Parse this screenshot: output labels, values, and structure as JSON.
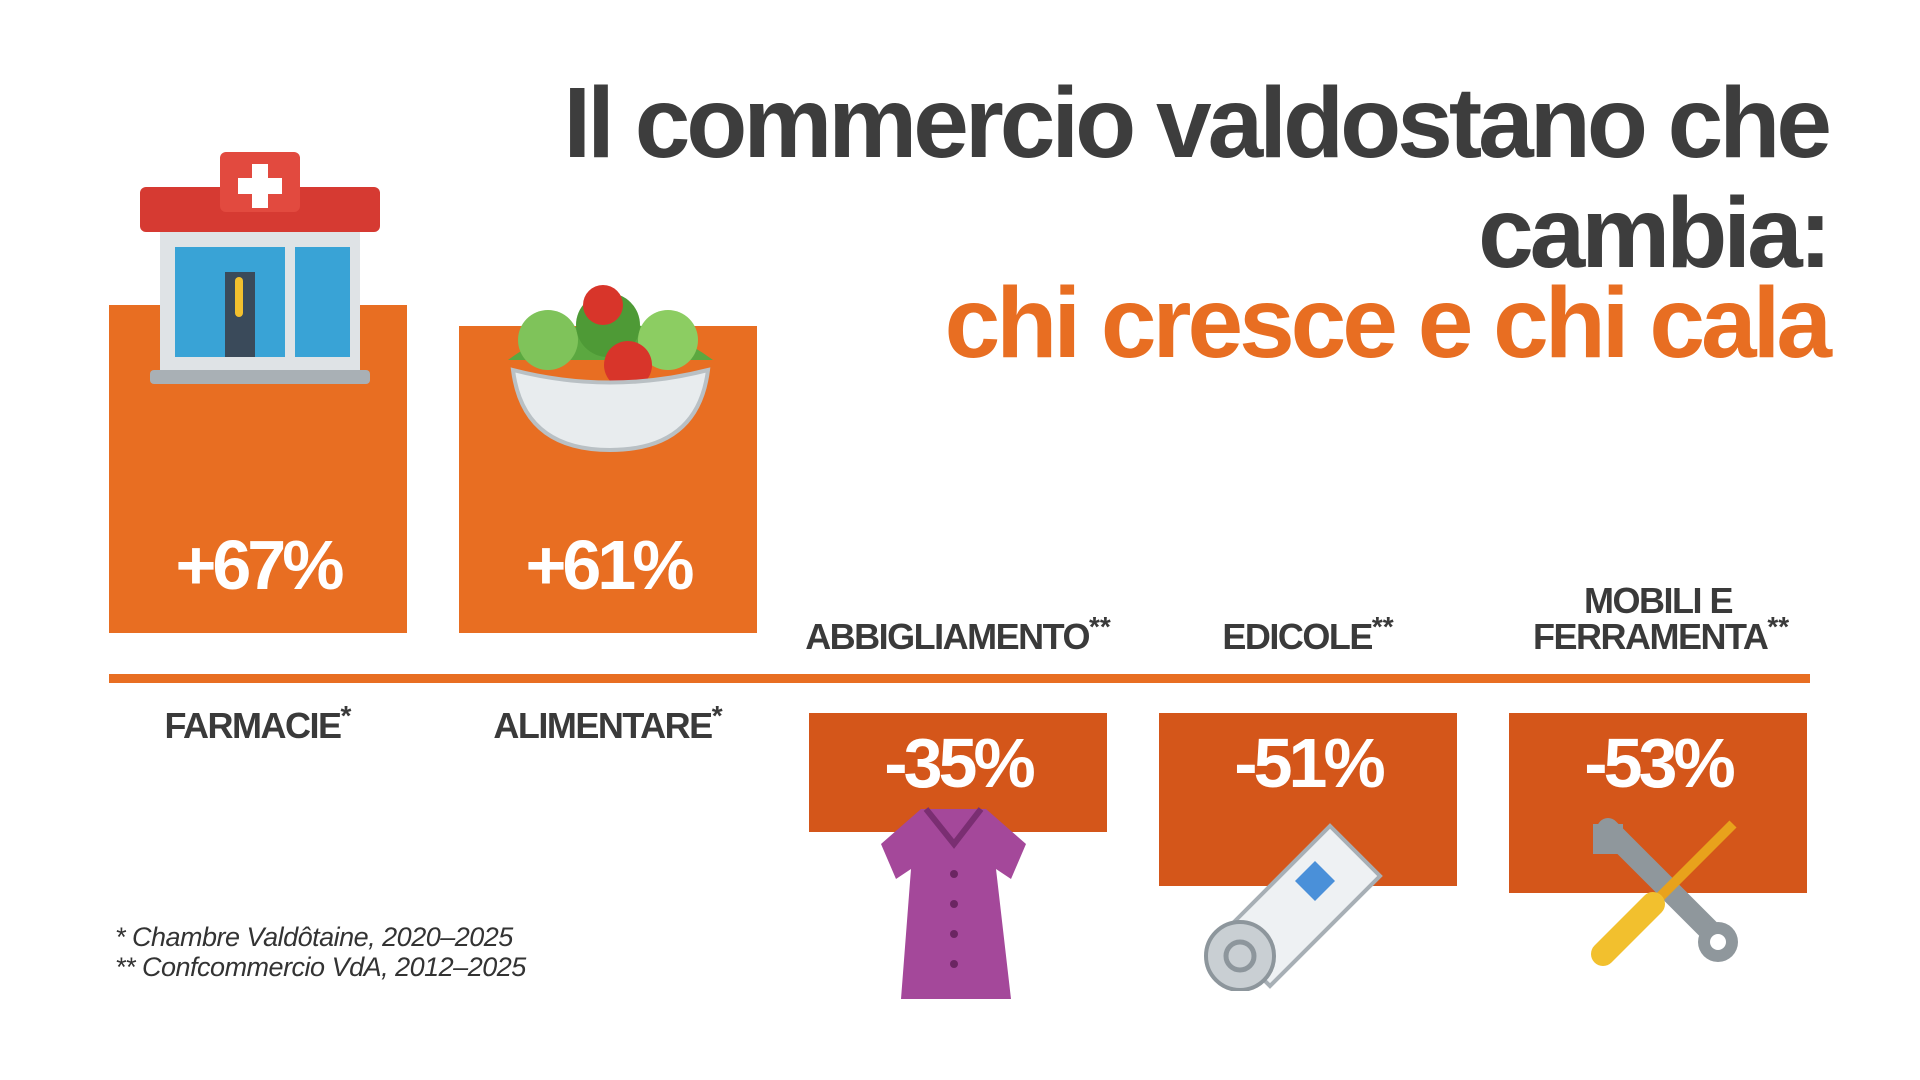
{
  "chart_data": {
    "type": "bar",
    "title": "Il commercio valdostano che cambia:",
    "subtitle": "chi cresce e chi cala",
    "categories": [
      "FARMACIE",
      "ALIMENTARE",
      "ABBIGLIAMENTO",
      "EDICOLE",
      "MOBILI E FERRAMENTA"
    ],
    "markers": [
      "*",
      "*",
      "**",
      "**",
      "**"
    ],
    "values": [
      67,
      61,
      -35,
      -51,
      -53
    ],
    "value_labels": [
      "+67%",
      "+61%",
      "-35%",
      "-51%",
      "-53%"
    ],
    "colors": {
      "positive": "#e86e22",
      "negative": "#d4561a"
    },
    "notes": [
      "* Chambre Valdôtaine, 2020–2025",
      "** Confcommercio VdA, 2012–2025"
    ]
  }
}
